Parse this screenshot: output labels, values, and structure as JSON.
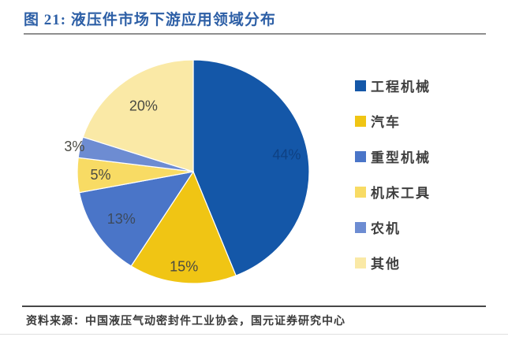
{
  "header": {
    "title": "图 21: 液压件市场下游应用领域分布"
  },
  "chart_data": {
    "type": "pie",
    "title": "液压件市场下游应用领域分布",
    "direction": "clockwise",
    "start_angle_deg": 0,
    "value_suffix": "%",
    "legend_position": "right",
    "grid": false,
    "series": [
      {
        "label": "工程机械",
        "value": 44,
        "color": "#1457a8",
        "label_color": "#0e4183",
        "label_radius": 0.82
      },
      {
        "label": "汽车",
        "value": 15,
        "color": "#f0c514",
        "label_color": "#4a4a42",
        "label_radius": 0.85
      },
      {
        "label": "重型机械",
        "value": 13,
        "color": "#4a75c8",
        "label_color": "#3d4a5c",
        "label_radius": 0.75
      },
      {
        "label": "机床工具",
        "value": 5,
        "color": "#f8db64",
        "label_color": "#4a4a42",
        "label_radius": 0.8
      },
      {
        "label": "农机",
        "value": 3,
        "color": "#6d8cd2",
        "label_color": "#4a4a42",
        "label_radius": 1.05
      },
      {
        "label": "其他",
        "value": 20,
        "color": "#fae9a6",
        "label_color": "#4a4a42",
        "label_radius": 0.73
      }
    ]
  },
  "footer": {
    "source": "资料来源：中国液压气动密封件工业协会，国元证券研究中心"
  }
}
